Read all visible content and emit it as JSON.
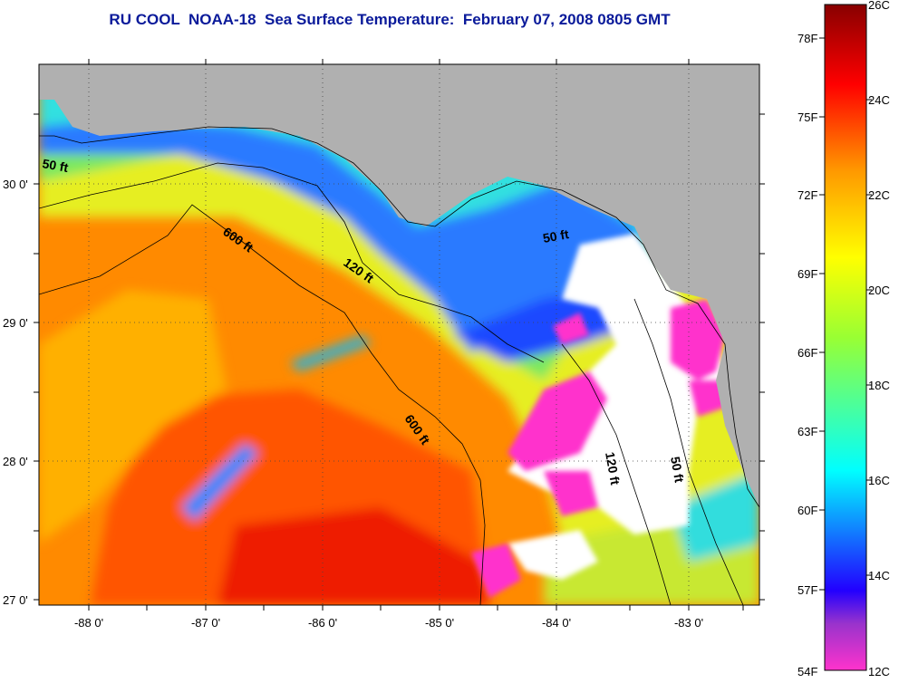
{
  "title": "RU COOL  NOAA-18  Sea Surface Temperature:  February 07, 2008 0805 GMT",
  "map": {
    "lat_ticks": [
      "30 0'",
      "29 0'",
      "28 0'",
      "27 0'"
    ],
    "lon_ticks": [
      "-88 0'",
      "-87 0'",
      "-86 0'",
      "-85 0'",
      "-84 0'",
      "-83 0'"
    ],
    "contour_labels": [
      "50 ft",
      "600 ft",
      "120 ft",
      "50 ft",
      "600 ft",
      "120 ft",
      "50 ft"
    ],
    "land_color": "#b0b0b0",
    "cloud_color": "#ffffff"
  },
  "colorbar": {
    "fahrenheit_labels": [
      "78F",
      "75F",
      "72F",
      "69F",
      "66F",
      "63F",
      "60F",
      "57F",
      "54F"
    ],
    "celsius_labels": [
      "26C",
      "24C",
      "22C",
      "20C",
      "18C",
      "16C",
      "14C",
      "12C"
    ],
    "colors": [
      "#ff33cc",
      "#3300ff",
      "#00ffff",
      "#ffff00",
      "#ff8800",
      "#ff0000",
      "#880000"
    ]
  }
}
